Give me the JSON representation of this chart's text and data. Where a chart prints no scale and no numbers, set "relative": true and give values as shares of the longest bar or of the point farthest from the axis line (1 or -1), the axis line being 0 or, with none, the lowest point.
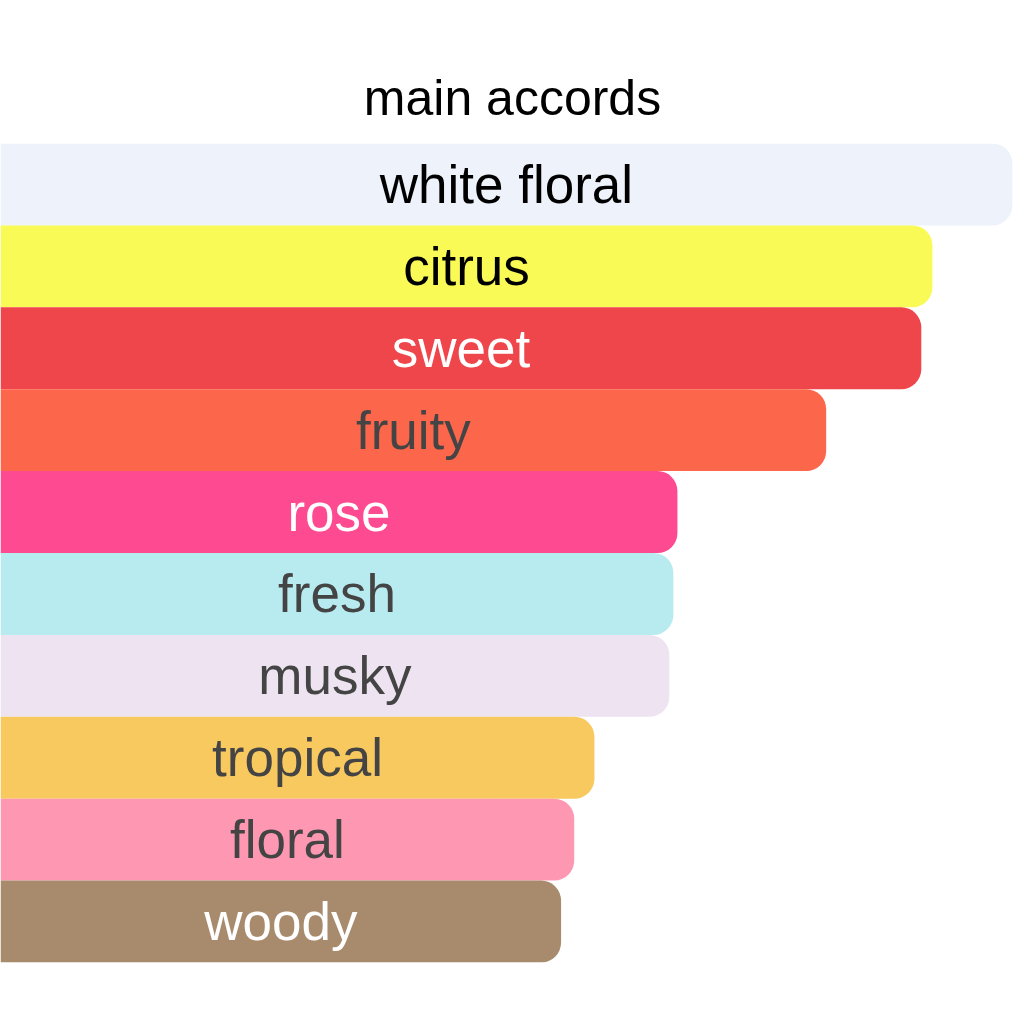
{
  "chart_data": {
    "type": "bar",
    "orientation": "horizontal",
    "relative": true,
    "title": "main accords",
    "categories": [
      "white floral",
      "citrus",
      "sweet",
      "fruity",
      "rose",
      "fresh",
      "musky",
      "tropical",
      "floral",
      "woody"
    ],
    "values": [
      1,
      0.921,
      0.91,
      0.816,
      0.669,
      0.665,
      0.661,
      0.587,
      0.567,
      0.554
    ],
    "colors": [
      "#eef2fa",
      "#f9fa55",
      "#ee464a",
      "#fc664b",
      "#fe4a91",
      "#b8ebf0",
      "#eee3f0",
      "#f8c95f",
      "#fe98b2",
      "#a88b6d"
    ]
  }
}
